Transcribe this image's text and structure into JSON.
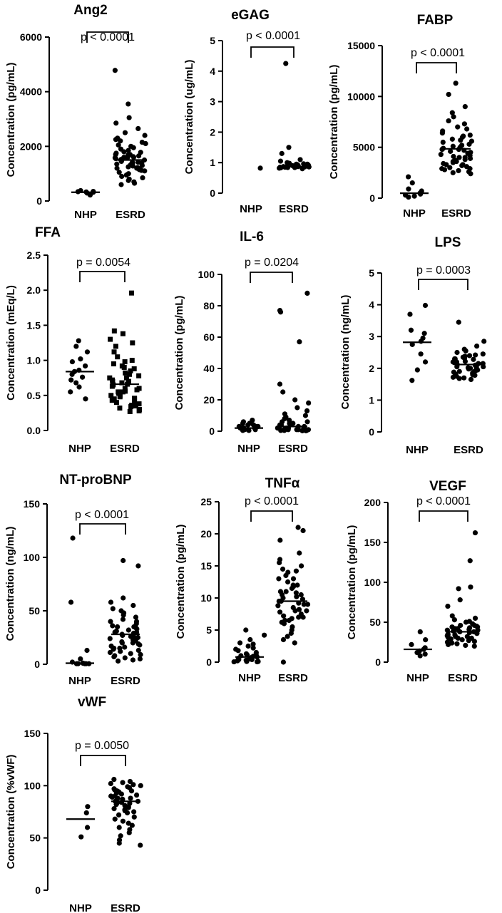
{
  "figure": {
    "background": "#ffffff",
    "ink": "#000000"
  },
  "chart_data": [
    {
      "type": "scatter",
      "title": "Ang2",
      "ylabel": "Concentration (pg/mL)",
      "ylim": [
        0,
        6000
      ],
      "yticks": [
        0,
        2000,
        4000,
        6000
      ],
      "categories": [
        "NHP",
        "ESRD"
      ],
      "pvalue_label": "p < 0.0001",
      "medians": [
        320,
        1500
      ],
      "series": [
        {
          "name": "NHP",
          "values": [
            220,
            290,
            320,
            330,
            340,
            350,
            380
          ]
        },
        {
          "name": "ESRD",
          "values": [
            4780,
            3550,
            3050,
            2850,
            2650,
            2500,
            2400,
            2300,
            2250,
            2200,
            2150,
            2100,
            2050,
            2000,
            1950,
            1900,
            1850,
            1800,
            1780,
            1750,
            1700,
            1680,
            1650,
            1620,
            1600,
            1580,
            1550,
            1520,
            1500,
            1480,
            1450,
            1420,
            1400,
            1380,
            1350,
            1320,
            1300,
            1280,
            1250,
            1220,
            1200,
            1180,
            1150,
            1120,
            1100,
            1050,
            1000,
            950,
            900,
            850,
            800,
            750,
            700,
            650,
            600,
            1700,
            1600,
            1500,
            1400,
            1300,
            1200,
            1600
          ]
        }
      ]
    },
    {
      "type": "scatter",
      "title": "eGAG",
      "ylabel": "Concentration (ug/mL)",
      "ylim": [
        0,
        5
      ],
      "yticks": [
        0,
        1,
        2,
        3,
        4,
        5
      ],
      "categories": [
        "NHP",
        "ESRD"
      ],
      "pvalue_label": "p < 0.0001",
      "medians": [
        null,
        0.87
      ],
      "series": [
        {
          "name": "NHP",
          "values": [
            0.82
          ]
        },
        {
          "name": "ESRD",
          "values": [
            4.25,
            1.5,
            1.3,
            1.1,
            1.05,
            1.0,
            0.98,
            0.96,
            0.95,
            0.93,
            0.92,
            0.9,
            0.9,
            0.89,
            0.88,
            0.87,
            0.87,
            0.86,
            0.85,
            0.85,
            0.84,
            0.83,
            0.82,
            0.8,
            0.9,
            0.88,
            0.86,
            0.84,
            0.92,
            0.95
          ]
        }
      ]
    },
    {
      "type": "scatter",
      "title": "FABP",
      "ylabel": "Concentration (pg/mL)",
      "ylim": [
        0,
        15000
      ],
      "yticks": [
        0,
        5000,
        10000,
        15000
      ],
      "categories": [
        "NHP",
        "ESRD"
      ],
      "pvalue_label": "p < 0.0001",
      "medians": [
        480,
        4850
      ],
      "series": [
        {
          "name": "NHP",
          "values": [
            2100,
            1500,
            900,
            700,
            500,
            400,
            300,
            200,
            100
          ]
        },
        {
          "name": "ESRD",
          "values": [
            11300,
            10200,
            9000,
            8400,
            8000,
            7600,
            7300,
            7000,
            6800,
            6600,
            6400,
            6200,
            6000,
            5800,
            5600,
            5500,
            5300,
            5100,
            5000,
            4900,
            4800,
            4700,
            4600,
            4500,
            4400,
            4300,
            4200,
            4100,
            4000,
            3900,
            3800,
            3700,
            3600,
            3500,
            3400,
            3300,
            3200,
            3100,
            3000,
            2900,
            2800,
            2700,
            2600,
            2500,
            2400,
            5200,
            4800,
            4400,
            4000,
            3600,
            6100,
            5700,
            3300,
            2900
          ]
        }
      ]
    },
    {
      "type": "scatter",
      "title": "FFA",
      "ylabel": "Concentration (mEq/L)",
      "ylim": [
        0,
        2.5
      ],
      "yticks": [
        "0.0",
        "0.5",
        "1.0",
        "1.5",
        "2.0",
        "2.5"
      ],
      "categories": [
        "NHP",
        "ESRD"
      ],
      "pvalue_label": "p = 0.0054",
      "medians": [
        0.84,
        0.66
      ],
      "series": [
        {
          "name": "NHP",
          "values": [
            1.28,
            1.2,
            1.12,
            1.02,
            0.98,
            0.92,
            0.86,
            0.84,
            0.8,
            0.76,
            0.72,
            0.68,
            0.62,
            0.55,
            0.45
          ]
        },
        {
          "name": "ESRD",
          "values": [
            1.96,
            1.42,
            1.38,
            1.3,
            1.25,
            1.2,
            1.12,
            1.05,
            1.0,
            0.98,
            0.95,
            0.92,
            0.9,
            0.88,
            0.85,
            0.82,
            0.8,
            0.78,
            0.75,
            0.72,
            0.7,
            0.68,
            0.66,
            0.65,
            0.63,
            0.6,
            0.58,
            0.56,
            0.55,
            0.53,
            0.5,
            0.48,
            0.46,
            0.45,
            0.43,
            0.41,
            0.4,
            0.38,
            0.36,
            0.34,
            0.32,
            0.3,
            0.28,
            0.27,
            0.6,
            0.55,
            0.5,
            0.7,
            0.75,
            0.45,
            0.35
          ]
        }
      ]
    },
    {
      "type": "scatter",
      "title": "IL-6",
      "ylabel": "Concentration (pg/mL)",
      "ylim": [
        0,
        100
      ],
      "yticks": [
        0,
        20,
        40,
        60,
        80,
        100
      ],
      "categories": [
        "NHP",
        "ESRD"
      ],
      "pvalue_label": "p = 0.0204",
      "medians": [
        2,
        3
      ],
      "series": [
        {
          "name": "NHP",
          "values": [
            7,
            6,
            5,
            5,
            4,
            4,
            3,
            3,
            3,
            2,
            2,
            2,
            2,
            1,
            1,
            1,
            1,
            0.5,
            0.5
          ]
        },
        {
          "name": "ESRD",
          "values": [
            88,
            77,
            76,
            57,
            30,
            25,
            20,
            18,
            15,
            13,
            11,
            10,
            9,
            8,
            7,
            6,
            5,
            5,
            4,
            4,
            3,
            3,
            3,
            2,
            2,
            2,
            2,
            1,
            1,
            1,
            1,
            1,
            0.5,
            0.5,
            0.5,
            0.3,
            0.3,
            4,
            6,
            2
          ]
        }
      ]
    },
    {
      "type": "scatter",
      "title": "LPS",
      "ylabel": "Concentration (ng/mL)",
      "ylim": [
        0,
        5
      ],
      "yticks": [
        0,
        1,
        2,
        3,
        4,
        5
      ],
      "categories": [
        "NHP",
        "ESRD"
      ],
      "pvalue_label": "p = 0.0003",
      "medians": [
        2.82,
        2.12
      ],
      "series": [
        {
          "name": "NHP",
          "values": [
            3.98,
            3.7,
            3.2,
            3.1,
            2.95,
            2.85,
            2.75,
            2.45,
            2.2,
            1.95,
            1.62
          ]
        },
        {
          "name": "ESRD",
          "values": [
            3.45,
            2.85,
            2.7,
            2.6,
            2.55,
            2.5,
            2.45,
            2.42,
            2.4,
            2.38,
            2.35,
            2.32,
            2.3,
            2.28,
            2.25,
            2.22,
            2.2,
            2.18,
            2.15,
            2.12,
            2.1,
            2.08,
            2.05,
            2.02,
            2.0,
            1.98,
            1.95,
            1.92,
            1.9,
            1.88,
            1.85,
            1.82,
            1.8,
            1.78,
            1.75,
            1.72,
            1.7,
            1.68,
            1.65,
            2.2,
            2.1,
            2.0,
            2.3,
            1.9,
            2.15,
            2.05
          ]
        }
      ]
    },
    {
      "type": "scatter",
      "title": "NT-proBNP",
      "ylabel": "Concentration (ng/mL)",
      "ylim": [
        0,
        150
      ],
      "yticks": [
        0,
        50,
        100,
        150
      ],
      "categories": [
        "NHP",
        "ESRD"
      ],
      "pvalue_label": "p < 0.0001",
      "medians": [
        1,
        28
      ],
      "series": [
        {
          "name": "NHP",
          "values": [
            118,
            58,
            13,
            5,
            2,
            1,
            1,
            0.5,
            0.5,
            0.5,
            0.5,
            0.5
          ]
        },
        {
          "name": "ESRD",
          "values": [
            97,
            92,
            62,
            58,
            55,
            52,
            50,
            48,
            46,
            44,
            42,
            40,
            38,
            36,
            35,
            34,
            33,
            32,
            31,
            30,
            29,
            28,
            27,
            26,
            25,
            24,
            23,
            22,
            21,
            20,
            19,
            18,
            17,
            16,
            15,
            14,
            13,
            12,
            11,
            10,
            9,
            8,
            7,
            6,
            5,
            4,
            3,
            30,
            25,
            20,
            35,
            40,
            15
          ]
        }
      ]
    },
    {
      "type": "scatter",
      "title": "TNFα",
      "ylabel": "Concentration (pg/mL)",
      "ylim": [
        0,
        25
      ],
      "yticks": [
        0,
        5,
        10,
        15,
        20,
        25
      ],
      "categories": [
        "NHP",
        "ESRD"
      ],
      "pvalue_label": "p < 0.0001",
      "medians": [
        0.8,
        9.5
      ],
      "series": [
        {
          "name": "NHP",
          "values": [
            5,
            4.2,
            3.5,
            3.0,
            2.5,
            2.2,
            2.0,
            1.8,
            1.5,
            1.3,
            1.1,
            1.0,
            0.9,
            0.8,
            0.7,
            0.6,
            0.5,
            0.4,
            0.3,
            0.2,
            0.1,
            0.1,
            0.05,
            0.05,
            1.2,
            0.8,
            0.4,
            2.8
          ]
        },
        {
          "name": "ESRD",
          "values": [
            21,
            20.5,
            19,
            17,
            16,
            15.5,
            15,
            14.5,
            14,
            13.5,
            13,
            12.5,
            12,
            11.8,
            11.5,
            11,
            10.8,
            10.5,
            10.2,
            10,
            9.8,
            9.5,
            9.2,
            9,
            8.8,
            8.5,
            8.2,
            8,
            7.8,
            7.5,
            7.2,
            7,
            6.8,
            6.5,
            6.2,
            6,
            5.5,
            5,
            4.5,
            4,
            3.5,
            3,
            0,
            10.5,
            9,
            12,
            8,
            11,
            7,
            13,
            6.5,
            9.5,
            14.2
          ]
        }
      ]
    },
    {
      "type": "scatter",
      "title": "VEGF",
      "ylabel": "Concentration (pg/mL)",
      "ylim": [
        0,
        200
      ],
      "yticks": [
        0,
        50,
        100,
        150,
        200
      ],
      "categories": [
        "NHP",
        "ESRD"
      ],
      "pvalue_label": "p < 0.0001",
      "medians": [
        16,
        38
      ],
      "series": [
        {
          "name": "NHP",
          "values": [
            38,
            28,
            22,
            18,
            16,
            14,
            12,
            10,
            8
          ]
        },
        {
          "name": "ESRD",
          "values": [
            162,
            127,
            94,
            92,
            78,
            70,
            58,
            55,
            53,
            51,
            50,
            48,
            46,
            45,
            44,
            43,
            42,
            41,
            40,
            39,
            38,
            37,
            36,
            35,
            34,
            33,
            32,
            31,
            30,
            29,
            28,
            27,
            26,
            25,
            24,
            23,
            22,
            21,
            20,
            40,
            38,
            36,
            42,
            34,
            44,
            32,
            46,
            30
          ]
        }
      ]
    },
    {
      "type": "scatter",
      "title": "vWF",
      "ylabel": "Concentration (%vWF)",
      "ylim": [
        0,
        150
      ],
      "yticks": [
        0,
        50,
        100,
        150
      ],
      "categories": [
        "NHP",
        "ESRD"
      ],
      "pvalue_label": "p = 0.0050",
      "medians": [
        68,
        85
      ],
      "series": [
        {
          "name": "NHP",
          "values": [
            80,
            74,
            60,
            51
          ]
        },
        {
          "name": "ESRD",
          "values": [
            106,
            104,
            103,
            102,
            101,
            100,
            99,
            98,
            97,
            96,
            95,
            94,
            93,
            92,
            91,
            90,
            89,
            88,
            87,
            86,
            85,
            84,
            83,
            82,
            81,
            80,
            79,
            78,
            77,
            76,
            75,
            74,
            72,
            70,
            68,
            66,
            64,
            62,
            60,
            58,
            55,
            52,
            48,
            45,
            43,
            90,
            85,
            80,
            95,
            88,
            83
          ]
        }
      ]
    }
  ]
}
